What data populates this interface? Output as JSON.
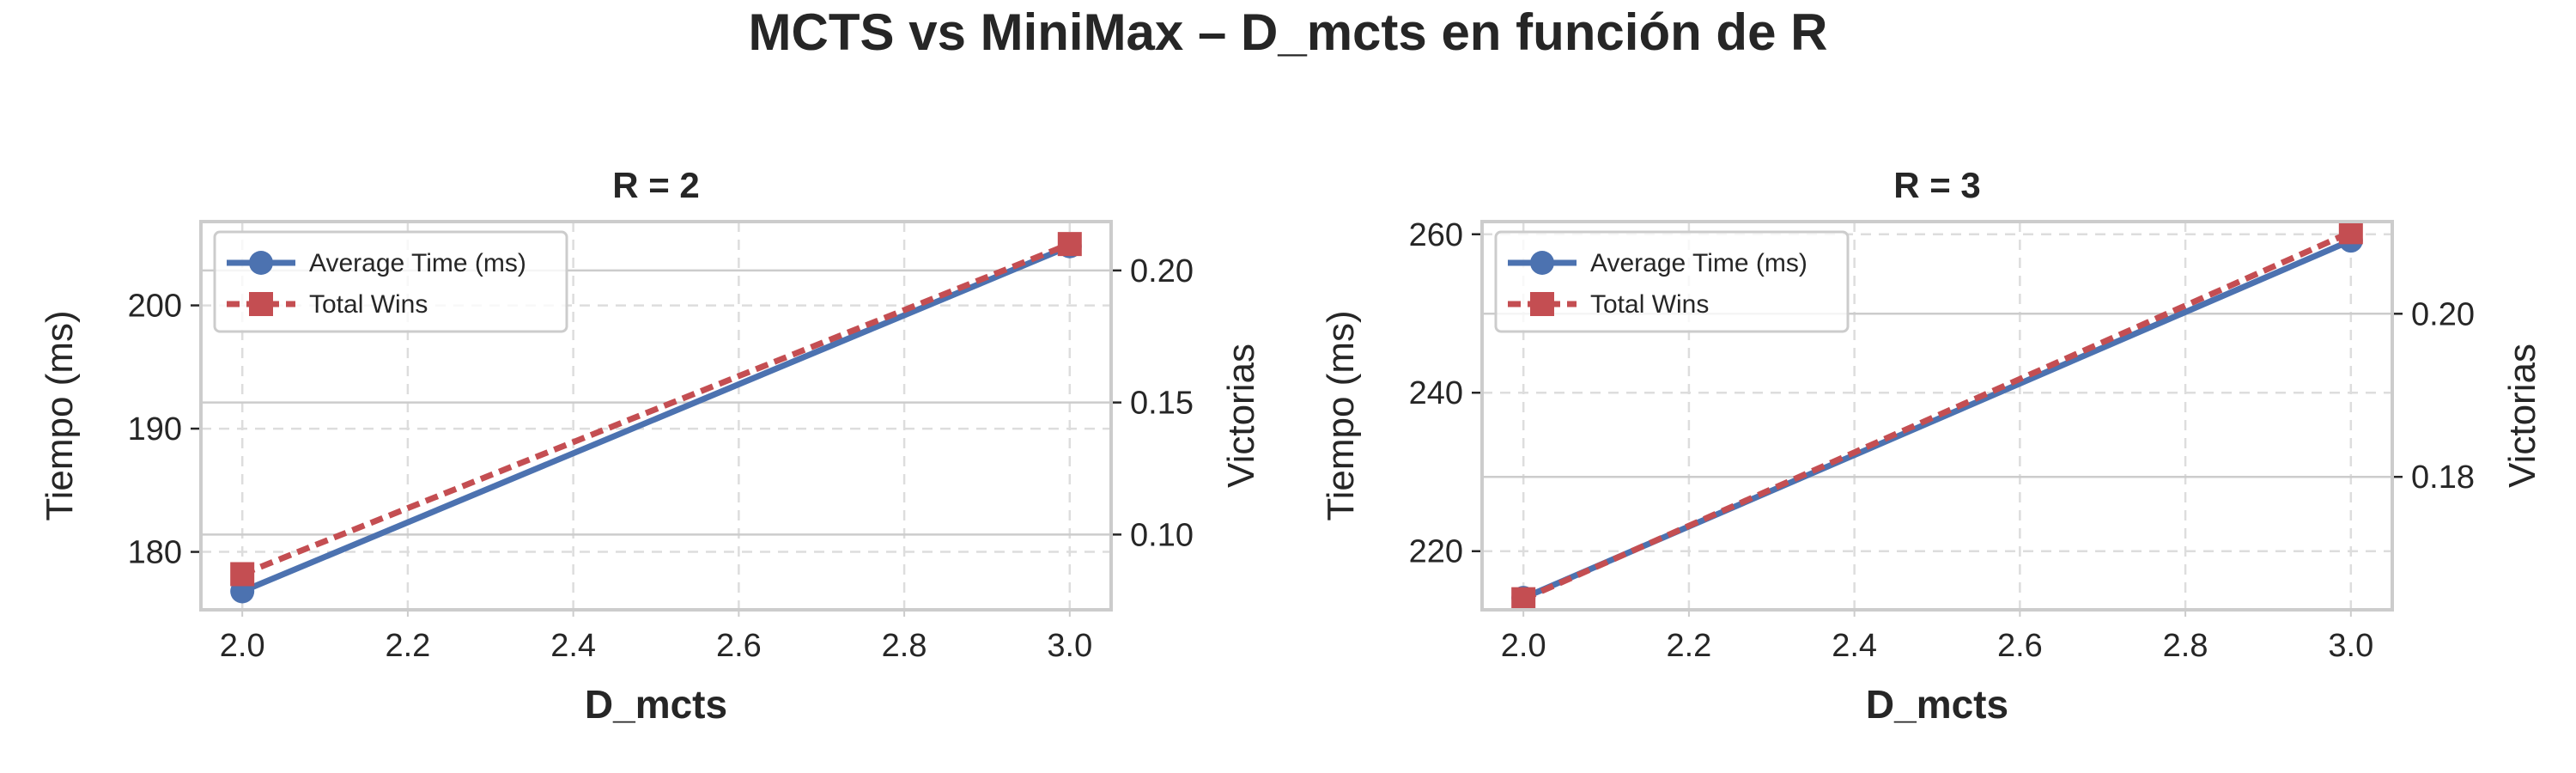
{
  "figure": {
    "title": "MCTS vs MiniMax – D_mcts en función de R"
  },
  "colors": {
    "time_series": "#4C72B0",
    "wins_series": "#C44E52",
    "frame": "#CCCCCC",
    "grid": "#DDDDDD",
    "text": "#262626"
  },
  "chart_data": [
    {
      "type": "line",
      "title": "R = 2",
      "xlabel": "D_mcts",
      "ylabel": "Tiempo (ms)",
      "ylabel_right": "Victorias",
      "x": [
        2.0,
        3.0
      ],
      "xlim": [
        1.95,
        3.05
      ],
      "ylim": [
        175.3,
        206.8
      ],
      "ylim_right": [
        0.0715,
        0.2185
      ],
      "xticks": [
        "2.0",
        "2.2",
        "2.4",
        "2.6",
        "2.8",
        "3.0"
      ],
      "yticks": [
        "180",
        "190",
        "200"
      ],
      "yticks_right": [
        "0.10",
        "0.15",
        "0.20"
      ],
      "series": [
        {
          "name": "Average Time (ms)",
          "axis": "left",
          "marker": "circle",
          "style": "solid",
          "values": [
            176.8,
            204.8
          ]
        },
        {
          "name": "Total Wins",
          "axis": "right",
          "marker": "square",
          "style": "dashed",
          "values": [
            0.085,
            0.21
          ]
        }
      ],
      "grid": true,
      "legend_position": "upper-left"
    },
    {
      "type": "line",
      "title": "R = 3",
      "xlabel": "D_mcts",
      "ylabel": "Tiempo (ms)",
      "ylabel_right": "Victorias",
      "x": [
        2.0,
        3.0
      ],
      "xlim": [
        1.95,
        3.05
      ],
      "ylim": [
        212.6,
        261.6
      ],
      "ylim_right": [
        0.1637,
        0.2113
      ],
      "xticks": [
        "2.0",
        "2.2",
        "2.4",
        "2.6",
        "2.8",
        "3.0"
      ],
      "yticks": [
        "220",
        "240",
        "260"
      ],
      "yticks_right": [
        "0.18",
        "0.20"
      ],
      "series": [
        {
          "name": "Average Time (ms)",
          "axis": "left",
          "marker": "circle",
          "style": "solid",
          "values": [
            214.1,
            259.2
          ]
        },
        {
          "name": "Total Wins",
          "axis": "right",
          "marker": "square",
          "style": "dashed",
          "values": [
            0.165,
            0.21
          ]
        }
      ],
      "grid": true,
      "legend_position": "upper-left"
    }
  ]
}
